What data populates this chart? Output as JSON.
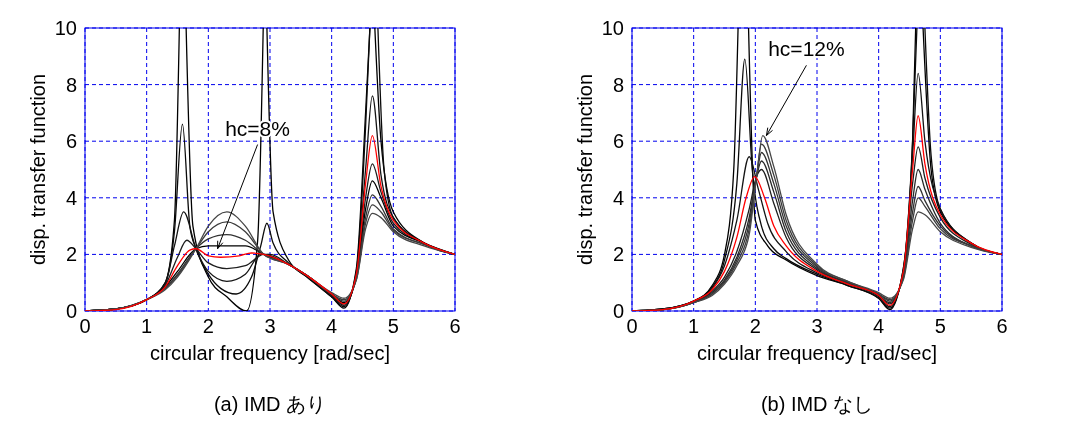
{
  "chart_data": [
    {
      "type": "line",
      "title": "(a) IMD あり",
      "xlabel": "circular frequency [rad/sec]",
      "ylabel": "disp. transfer function",
      "xlim": [
        0,
        6
      ],
      "ylim": [
        0,
        10
      ],
      "xticks": [
        0,
        1,
        2,
        3,
        4,
        5,
        6
      ],
      "yticks": [
        0,
        2,
        4,
        6,
        8,
        10
      ],
      "grid": true,
      "annotations": [
        {
          "text": "hc=8%",
          "x": 2.15,
          "y": 2.2
        }
      ],
      "series": [
        {
          "color": "#000000",
          "x": [
            0,
            0.5,
            1,
            1.3,
            1.45,
            1.53,
            1.58,
            1.64,
            1.75,
            2,
            2.3,
            2.62,
            2.8,
            2.89,
            2.92,
            2.95,
            3.05,
            3.3,
            3.6,
            4,
            4.2,
            4.4,
            4.55,
            4.62,
            4.66,
            4.7,
            4.8,
            5,
            5.5,
            6
          ],
          "values": [
            0,
            0.07,
            0.4,
            1.0,
            3.2,
            10,
            null,
            10,
            3.0,
            1.2,
            0.5,
            0,
            2.5,
            10,
            null,
            10,
            3.5,
            1.8,
            1.2,
            0.5,
            0.1,
            1.5,
            7,
            10,
            null,
            10,
            6,
            3.5,
            2.4,
            2.0
          ]
        },
        {
          "color": "#0a0a0a",
          "x": [
            0,
            0.5,
            1,
            1.3,
            1.45,
            1.58,
            1.7,
            1.8,
            2,
            2.2,
            2.45,
            2.7,
            2.85,
            2.95,
            3.05,
            3.3,
            3.6,
            4,
            4.2,
            4.4,
            4.55,
            4.62,
            4.68,
            4.75,
            4.85,
            5,
            5.5,
            6
          ],
          "values": [
            0,
            0.07,
            0.4,
            1.0,
            2.8,
            6.6,
            3.0,
            2.2,
            1.3,
            0.8,
            0.6,
            1.2,
            2.3,
            3.1,
            2.4,
            1.7,
            1.2,
            0.5,
            0.15,
            1.4,
            6.5,
            10,
            null,
            10,
            5,
            3.3,
            2.4,
            2.0
          ]
        },
        {
          "color": "#141414",
          "x": [
            0,
            0.5,
            1,
            1.3,
            1.45,
            1.6,
            1.8,
            2,
            2.3,
            2.6,
            2.85,
            3,
            3.3,
            3.6,
            4,
            4.2,
            4.4,
            4.55,
            4.66,
            4.8,
            5,
            5.5,
            6
          ],
          "values": [
            0,
            0.07,
            0.4,
            0.95,
            2.3,
            3.5,
            2.2,
            1.4,
            1.05,
            1.3,
            2.0,
            2.0,
            1.65,
            1.25,
            0.55,
            0.2,
            1.3,
            5.0,
            7.6,
            4.8,
            3.3,
            2.4,
            2.0
          ]
        },
        {
          "color": "#1e1e1e",
          "x": [
            0,
            0.5,
            1,
            1.3,
            1.5,
            1.65,
            1.8,
            2,
            2.3,
            2.6,
            2.9,
            3.3,
            3.6,
            4,
            4.2,
            4.4,
            4.55,
            4.66,
            4.8,
            5,
            5.5,
            6
          ],
          "values": [
            0,
            0.07,
            0.4,
            0.9,
            1.9,
            2.5,
            2.2,
            1.7,
            1.5,
            1.6,
            2.0,
            1.65,
            1.25,
            0.55,
            0.25,
            1.2,
            4.0,
            5.2,
            4.2,
            3.1,
            2.4,
            2.0
          ]
        },
        {
          "color": "#000000",
          "x": [
            0,
            0.5,
            1,
            1.3,
            1.5,
            1.8,
            2,
            2.3,
            2.6,
            2.9,
            3.3,
            3.6,
            4,
            4.2,
            4.4,
            4.55,
            4.66,
            4.8,
            5,
            5.5,
            6
          ],
          "values": [
            0,
            0.07,
            0.4,
            0.85,
            1.4,
            2.2,
            2.3,
            2.3,
            2.3,
            2.0,
            1.65,
            1.25,
            0.6,
            0.3,
            1.2,
            3.6,
            4.6,
            4.0,
            3.0,
            2.4,
            2.0
          ]
        },
        {
          "color": "#323232",
          "x": [
            0,
            0.5,
            1,
            1.3,
            1.5,
            1.8,
            2,
            2.3,
            2.6,
            2.9,
            3.3,
            3.6,
            4,
            4.2,
            4.4,
            4.55,
            4.66,
            4.8,
            5,
            5.5,
            6
          ],
          "values": [
            0,
            0.07,
            0.4,
            0.8,
            1.3,
            2.2,
            2.55,
            2.7,
            2.5,
            2.0,
            1.65,
            1.25,
            0.6,
            0.35,
            1.2,
            3.3,
            4.1,
            3.7,
            2.9,
            2.35,
            2.0
          ]
        },
        {
          "color": "#3c3c3c",
          "x": [
            0,
            0.5,
            1,
            1.3,
            1.5,
            1.8,
            2,
            2.3,
            2.6,
            2.9,
            3.3,
            3.6,
            4,
            4.2,
            4.4,
            4.55,
            4.66,
            4.8,
            5,
            5.5,
            6
          ],
          "values": [
            0,
            0.07,
            0.4,
            0.8,
            1.25,
            2.2,
            2.8,
            3.15,
            2.8,
            2.0,
            1.65,
            1.25,
            0.6,
            0.4,
            1.1,
            3.1,
            3.75,
            3.5,
            2.85,
            2.35,
            2.0
          ]
        },
        {
          "color": "#464646",
          "x": [
            0,
            0.5,
            1,
            1.3,
            1.5,
            1.8,
            2,
            2.3,
            2.6,
            2.9,
            3.3,
            3.6,
            4,
            4.2,
            4.4,
            4.55,
            4.66,
            4.8,
            5,
            5.5,
            6
          ],
          "values": [
            0,
            0.07,
            0.4,
            0.75,
            1.2,
            2.2,
            3.0,
            3.5,
            3.0,
            2.0,
            1.65,
            1.25,
            0.65,
            0.45,
            1.1,
            2.9,
            3.45,
            3.3,
            2.8,
            2.3,
            2.0
          ]
        },
        {
          "color": "#ff0000",
          "x": [
            0,
            0.5,
            1,
            1.3,
            1.5,
            1.7,
            1.8,
            2,
            2.2,
            2.5,
            2.7,
            2.9,
            3.3,
            3.6,
            4,
            4.2,
            4.4,
            4.55,
            4.66,
            4.8,
            5,
            5.5,
            6
          ],
          "values": [
            0,
            0.05,
            0.4,
            0.85,
            1.6,
            2.15,
            2.2,
            1.95,
            1.9,
            1.95,
            2.05,
            2.0,
            1.65,
            1.25,
            0.6,
            0.25,
            1.3,
            4.5,
            6.2,
            4.4,
            3.2,
            2.4,
            2.0
          ]
        }
      ]
    },
    {
      "type": "line",
      "title": "(b) IMD なし",
      "xlabel": "circular frequency [rad/sec]",
      "ylabel": "disp. transfer function",
      "xlim": [
        0,
        6
      ],
      "ylim": [
        0,
        10
      ],
      "xticks": [
        0,
        1,
        2,
        3,
        4,
        5,
        6
      ],
      "yticks": [
        0,
        2,
        4,
        6,
        8,
        10
      ],
      "grid": true,
      "annotations": [
        {
          "text": "hc=12%",
          "x": 2.18,
          "y": 6.2
        }
      ],
      "series": [
        {
          "color": "#000000",
          "x": [
            0,
            0.5,
            1,
            1.3,
            1.5,
            1.65,
            1.72,
            1.8,
            1.89,
            2,
            2.2,
            2.5,
            3,
            3.5,
            4,
            4.18,
            4.4,
            4.55,
            4.6,
            4.66,
            4.72,
            4.85,
            5,
            5.5,
            6
          ],
          "values": [
            0,
            0.07,
            0.35,
            0.9,
            2.0,
            5,
            10,
            null,
            10,
            3.2,
            2.3,
            1.8,
            1.25,
            0.9,
            0.45,
            0.05,
            1.5,
            6,
            10,
            null,
            10,
            5,
            3.5,
            2.4,
            2.0
          ]
        },
        {
          "color": "#0a0a0a",
          "x": [
            0,
            0.5,
            1,
            1.3,
            1.5,
            1.7,
            1.83,
            1.95,
            2.1,
            2.3,
            2.5,
            3,
            3.5,
            4,
            4.18,
            4.4,
            4.55,
            4.62,
            4.68,
            4.75,
            4.85,
            5,
            5.5,
            6
          ],
          "values": [
            0,
            0.07,
            0.35,
            0.85,
            1.8,
            4.5,
            8.9,
            5,
            3.0,
            2.2,
            1.85,
            1.3,
            0.9,
            0.45,
            0.1,
            1.5,
            6,
            10,
            null,
            10,
            5.5,
            3.6,
            2.4,
            2.0
          ]
        },
        {
          "color": "#141414",
          "x": [
            0,
            0.5,
            1,
            1.3,
            1.5,
            1.7,
            1.9,
            2.05,
            2.2,
            2.5,
            3,
            3.5,
            4,
            4.18,
            4.4,
            4.55,
            4.64,
            4.75,
            5,
            5.5,
            6
          ],
          "values": [
            0,
            0.07,
            0.35,
            0.8,
            1.6,
            3.2,
            5.45,
            4.3,
            3.1,
            2.1,
            1.35,
            0.95,
            0.5,
            0.15,
            1.4,
            5.5,
            8.4,
            6,
            3.6,
            2.4,
            2.0
          ]
        },
        {
          "color": "#1e1e1e",
          "x": [
            0,
            0.5,
            1,
            1.3,
            1.5,
            1.7,
            1.9,
            2.02,
            2.1,
            2.3,
            2.5,
            3,
            3.5,
            4,
            4.18,
            4.4,
            4.55,
            4.64,
            4.75,
            5,
            5.5,
            6
          ],
          "values": [
            0,
            0.05,
            0.3,
            0.7,
            1.2,
            2.1,
            3.6,
            4.75,
            5.0,
            3.8,
            2.6,
            1.45,
            1.0,
            0.55,
            0.25,
            1.3,
            4.5,
            5.8,
            4.7,
            3.3,
            2.35,
            2.0
          ]
        },
        {
          "color": "#282828",
          "x": [
            0,
            0.5,
            1,
            1.3,
            1.5,
            1.7,
            1.9,
            2.02,
            2.1,
            2.3,
            2.5,
            3,
            3.5,
            4,
            4.18,
            4.4,
            4.55,
            4.64,
            4.75,
            5,
            5.5,
            6
          ],
          "values": [
            0,
            0.05,
            0.3,
            0.65,
            1.1,
            1.9,
            3.3,
            4.75,
            5.3,
            4.2,
            2.8,
            1.5,
            1.0,
            0.55,
            0.3,
            1.25,
            3.9,
            5.0,
            4.3,
            3.1,
            2.3,
            2.0
          ]
        },
        {
          "color": "#323232",
          "x": [
            0,
            0.5,
            1,
            1.3,
            1.5,
            1.7,
            1.9,
            2.02,
            2.1,
            2.3,
            2.5,
            3,
            3.5,
            4,
            4.18,
            4.4,
            4.55,
            4.64,
            4.75,
            5,
            5.5,
            6
          ],
          "values": [
            0,
            0.05,
            0.3,
            0.6,
            1.05,
            1.8,
            3.1,
            4.75,
            5.6,
            4.5,
            3.0,
            1.55,
            1.0,
            0.6,
            0.35,
            1.2,
            3.5,
            4.4,
            3.9,
            3.0,
            2.3,
            2.0
          ]
        },
        {
          "color": "#3c3c3c",
          "x": [
            0,
            0.5,
            1,
            1.3,
            1.5,
            1.7,
            1.9,
            2.02,
            2.1,
            2.3,
            2.5,
            3,
            3.5,
            4,
            4.18,
            4.4,
            4.55,
            4.64,
            4.75,
            5,
            5.5,
            6
          ],
          "values": [
            0,
            0.05,
            0.3,
            0.6,
            1.0,
            1.7,
            2.9,
            4.75,
            5.9,
            4.8,
            3.2,
            1.6,
            1.05,
            0.6,
            0.4,
            1.15,
            3.2,
            4.0,
            3.7,
            2.9,
            2.3,
            2.0
          ]
        },
        {
          "color": "#464646",
          "x": [
            0,
            0.5,
            1,
            1.3,
            1.5,
            1.7,
            1.9,
            2.02,
            2.12,
            2.3,
            2.5,
            3,
            3.5,
            4,
            4.18,
            4.4,
            4.55,
            4.64,
            4.75,
            5,
            5.5,
            6
          ],
          "values": [
            0,
            0.05,
            0.3,
            0.55,
            0.95,
            1.6,
            2.7,
            4.75,
            6.2,
            5.1,
            3.4,
            1.65,
            1.05,
            0.65,
            0.45,
            1.1,
            2.9,
            3.5,
            3.4,
            2.8,
            2.25,
            2.0
          ]
        },
        {
          "color": "#ff0000",
          "x": [
            0,
            0.5,
            1,
            1.3,
            1.5,
            1.7,
            1.85,
            1.99,
            2.15,
            2.3,
            2.5,
            3,
            3.5,
            4,
            4.18,
            4.4,
            4.55,
            4.64,
            4.75,
            5,
            5.5,
            6
          ],
          "values": [
            0,
            0.05,
            0.35,
            0.75,
            1.4,
            2.6,
            4.0,
            4.75,
            4.0,
            3.0,
            2.3,
            1.4,
            0.95,
            0.55,
            0.2,
            1.4,
            5.0,
            6.9,
            5.2,
            3.4,
            2.4,
            2.0
          ]
        }
      ]
    }
  ]
}
